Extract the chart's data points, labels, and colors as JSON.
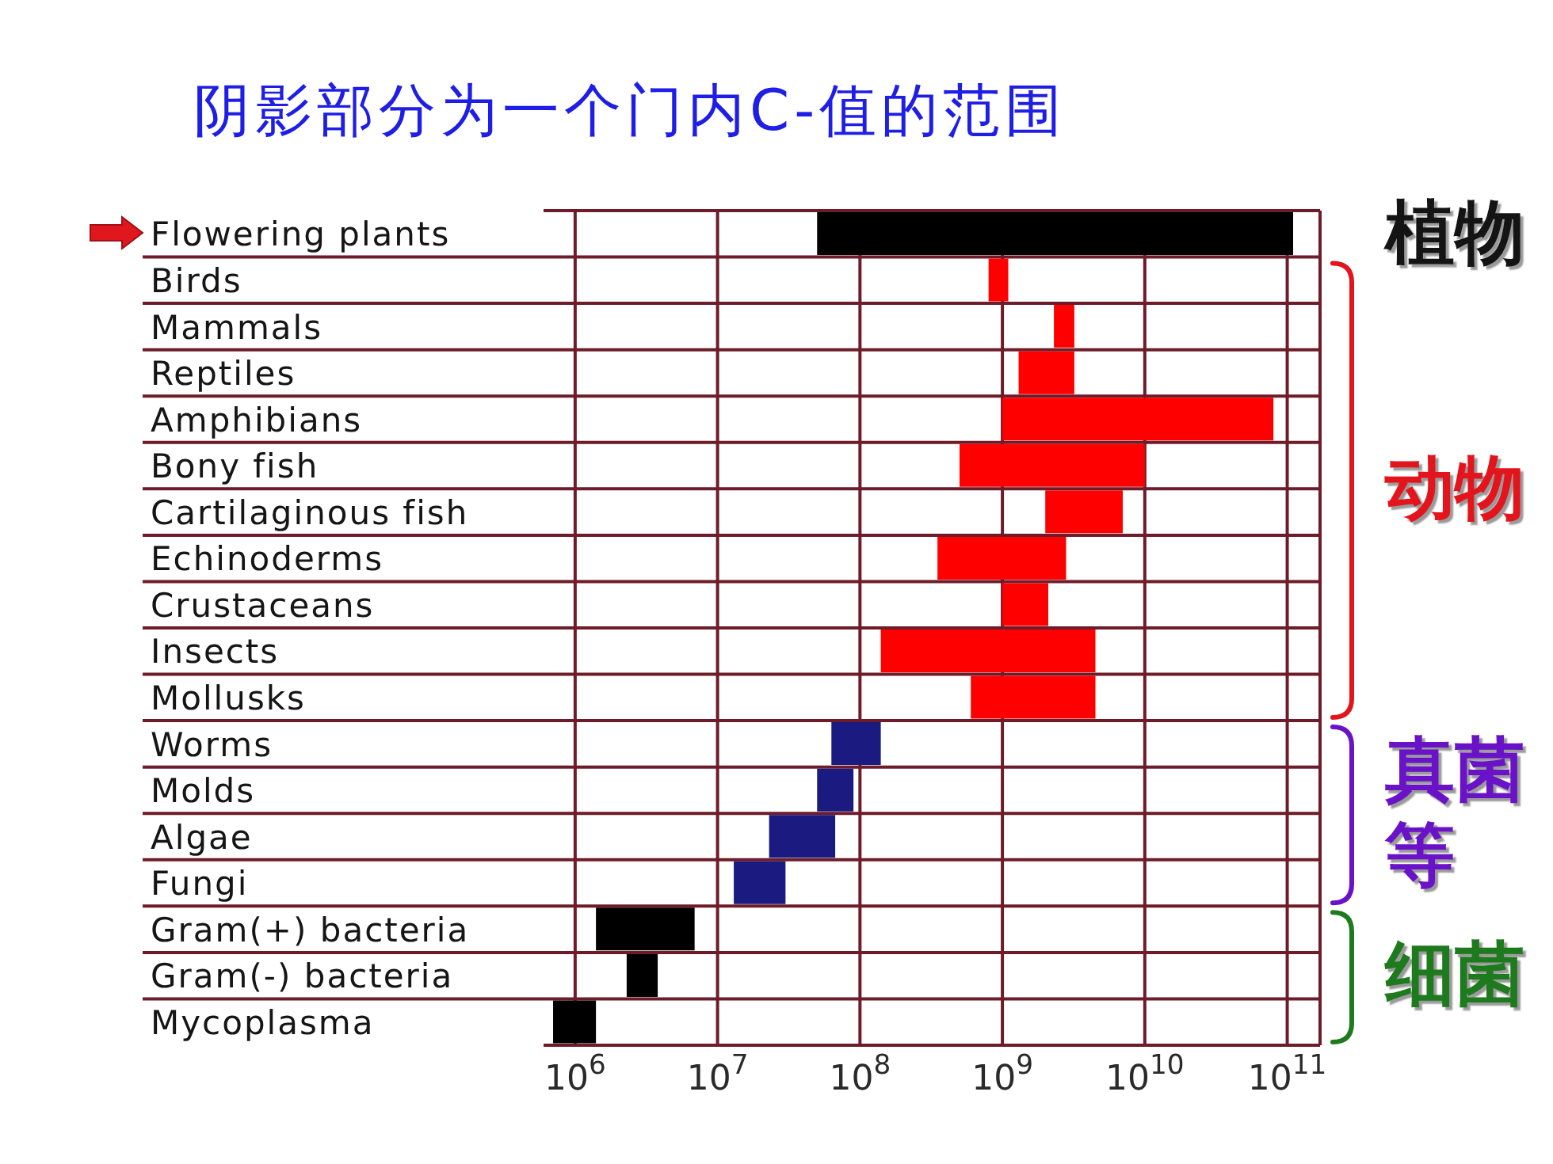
{
  "chart_data": {
    "type": "bar",
    "orientation": "horizontal",
    "title": "阴影部分为一个门内C-值的范围",
    "categories": [
      "Flowering plants",
      "Birds",
      "Mammals",
      "Reptiles",
      "Amphibians",
      "Bony fish",
      "Cartilaginous fish",
      "Echinoderms",
      "Crustaceans",
      "Insects",
      "Mollusks",
      "Worms",
      "Molds",
      "Algae",
      "Fungi",
      "Gram(+) bacteria",
      "Gram(-) bacteria",
      "Mycoplasma"
    ],
    "base": [
      50000000,
      800000000,
      2300000000,
      1300000000,
      1000000000,
      500000000,
      2000000000,
      350000000,
      1000000000,
      140000000,
      600000000,
      63000000,
      50000000,
      23000000,
      13000000,
      1400000,
      2300000,
      700000
    ],
    "values": [
      109950000000,
      300000000,
      900000000,
      1900000000,
      79000000000,
      9500000000,
      5000000000,
      2450000000,
      1100000000,
      4360000000,
      3900000000,
      77000000,
      40000000,
      44000000,
      17000000,
      5500000,
      1500000,
      700000
    ],
    "colors": [
      "#000000",
      "#ff0000",
      "#ff0000",
      "#ff0000",
      "#ff0000",
      "#ff0000",
      "#ff0000",
      "#ff0000",
      "#ff0000",
      "#ff0000",
      "#ff0000",
      "#1a1a80",
      "#1a1a80",
      "#1a1a80",
      "#1a1a80",
      "#000000",
      "#000000",
      "#000000"
    ],
    "xlim": [
      600000,
      170000000000
    ],
    "xticks": [
      {
        "value": 1000000,
        "label": "10$^{6}$"
      },
      {
        "value": 10000000,
        "label": "10$^{7}$"
      },
      {
        "value": 100000000,
        "label": "10$^{8}$"
      },
      {
        "value": 1000000000,
        "label": "10$^{9}$"
      },
      {
        "value": 10000000000,
        "label": "10$^{10}$"
      },
      {
        "value": 100000000000,
        "label": "10$^{11}$"
      }
    ],
    "log": "x",
    "grid": true,
    "annotations": [
      "植物",
      "动物",
      "真菌等",
      "细菌"
    ]
  }
}
